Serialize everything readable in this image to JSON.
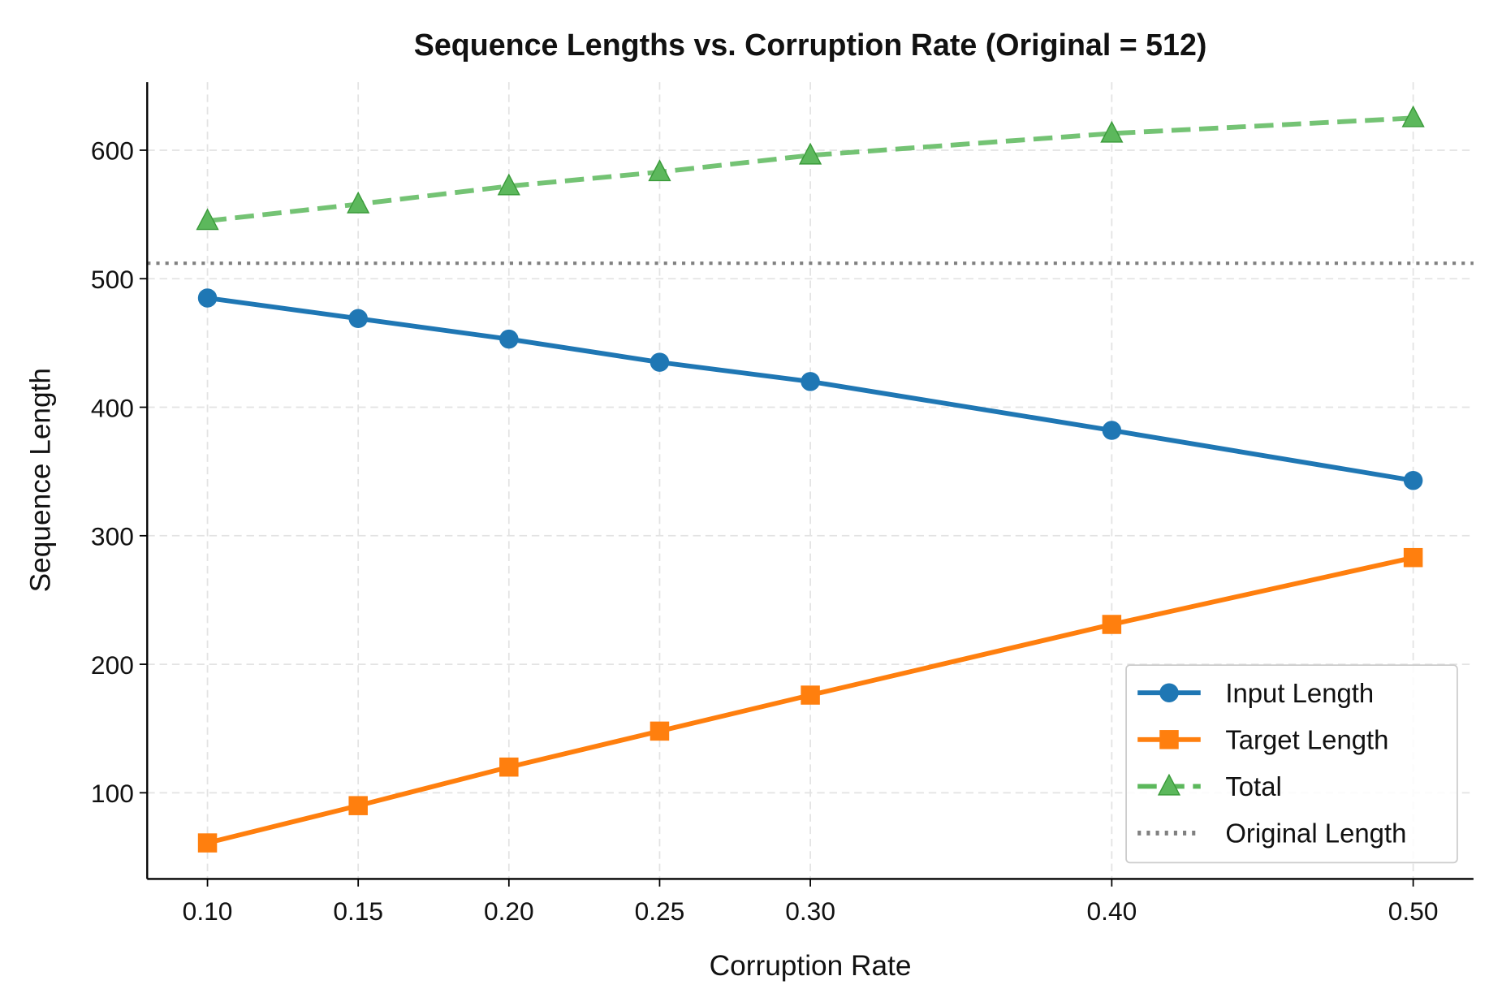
{
  "chart_data": {
    "type": "line",
    "title": "Sequence Lengths vs. Corruption Rate (Original = 512)",
    "xlabel": "Corruption Rate",
    "ylabel": "Sequence Length",
    "x": [
      0.1,
      0.15,
      0.2,
      0.25,
      0.3,
      0.4,
      0.5
    ],
    "x_tick_labels": [
      "0.10",
      "0.15",
      "0.20",
      "0.25",
      "0.30",
      "0.40",
      "0.50"
    ],
    "y_ticks": [
      100,
      200,
      300,
      400,
      500,
      600
    ],
    "y_tick_labels": [
      "100",
      "200",
      "300",
      "400",
      "500",
      "600"
    ],
    "xlim": [
      0.08,
      0.52
    ],
    "ylim": [
      33,
      653
    ],
    "grid": true,
    "legend_position": "lower-right",
    "series": [
      {
        "name": "Input Length",
        "values": [
          485,
          469,
          453,
          435,
          420,
          382,
          343
        ],
        "color": "#1f77b4",
        "marker": "circle",
        "linestyle": "solid"
      },
      {
        "name": "Target Length",
        "values": [
          61,
          90,
          120,
          148,
          176,
          231,
          283
        ],
        "color": "#ff7f0e",
        "marker": "square",
        "linestyle": "solid"
      },
      {
        "name": "Total",
        "values": [
          545,
          558,
          572,
          583,
          596,
          613,
          625
        ],
        "color": "#5cb85c",
        "marker": "triangle",
        "linestyle": "dashed"
      }
    ],
    "reference_line": {
      "name": "Original Length",
      "y": 512,
      "color": "#808080",
      "linestyle": "dotted"
    }
  }
}
